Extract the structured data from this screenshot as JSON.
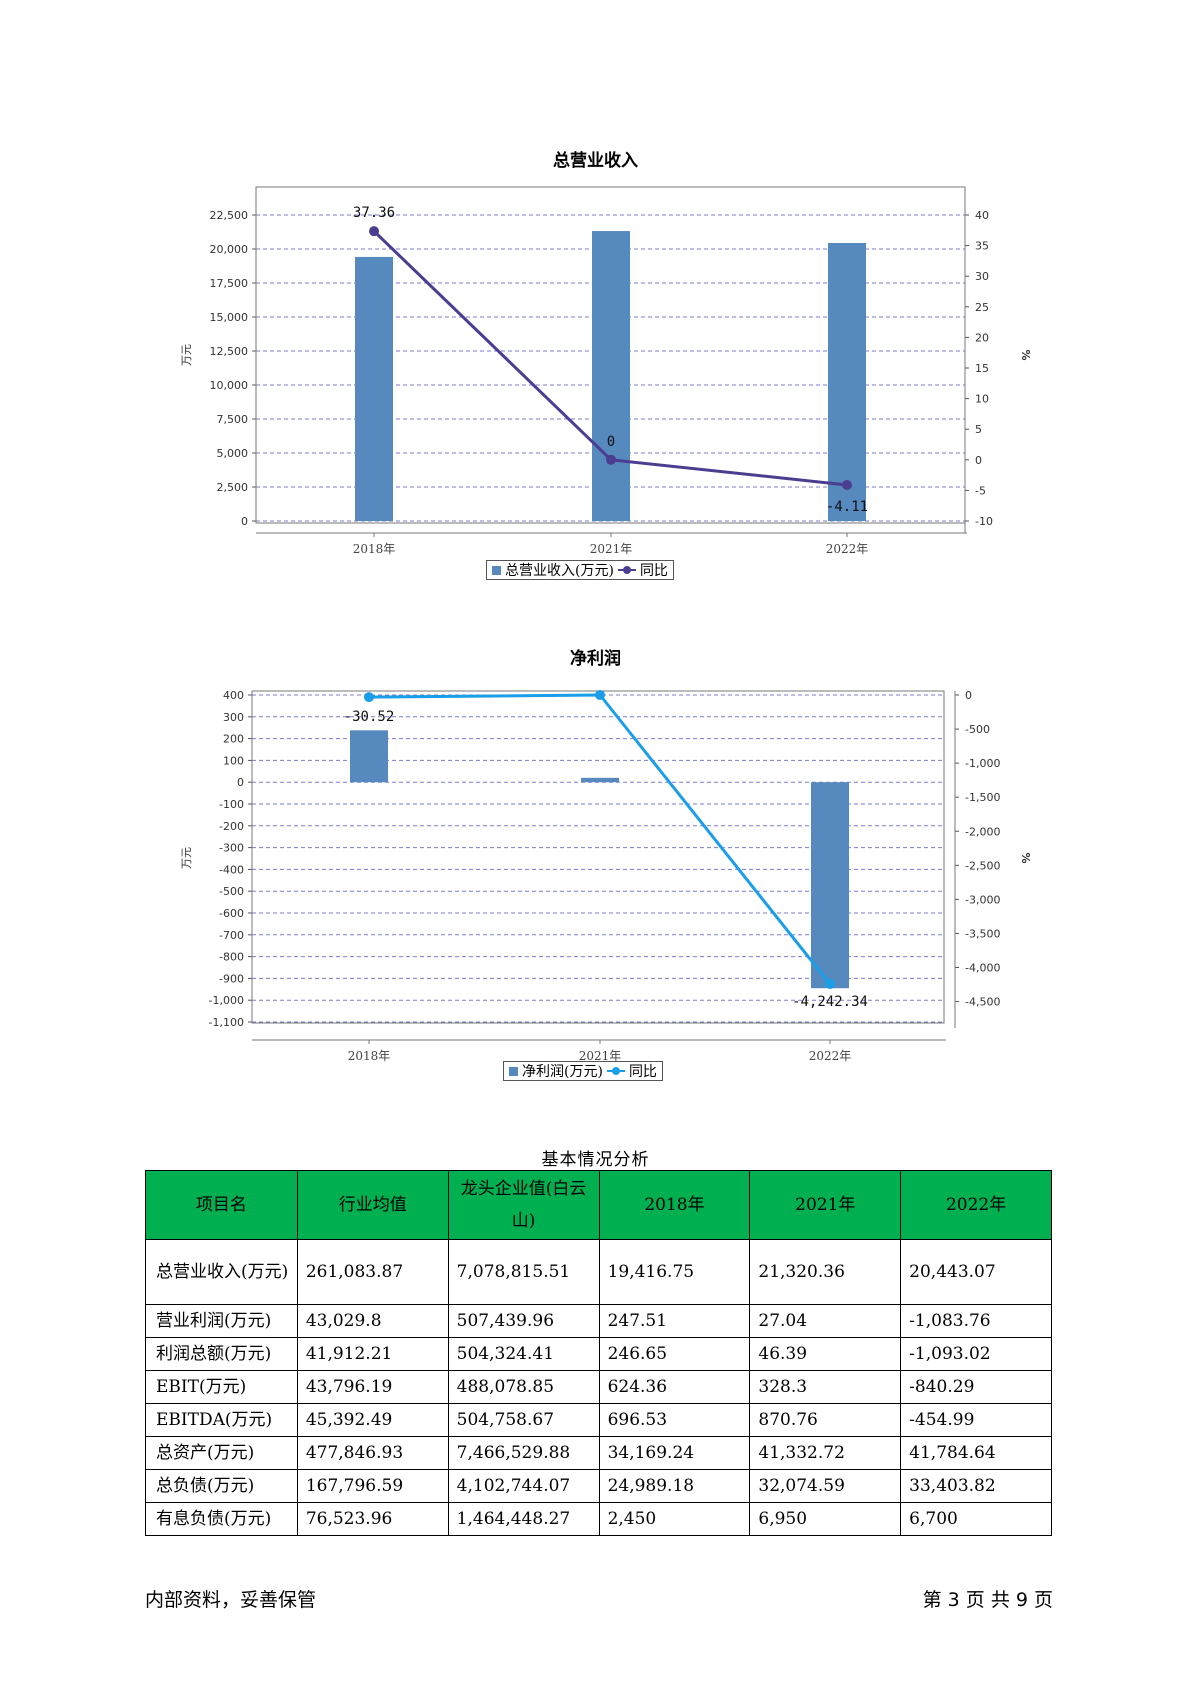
{
  "chart_data": [
    {
      "type": "bar",
      "title": "总营业收入",
      "categories": [
        "2018年",
        "2021年",
        "2022年"
      ],
      "ylabel": "万元",
      "y2label": "%",
      "ylim": [
        0,
        22500
      ],
      "y2lim": [
        -10,
        40
      ],
      "yticks": [
        "0",
        "2,500",
        "5,000",
        "7,500",
        "10,000",
        "12,500",
        "15,000",
        "17,500",
        "20,000",
        "22,500"
      ],
      "y2ticks": [
        "-10",
        "-5",
        "0",
        "5",
        "10",
        "15",
        "20",
        "25",
        "30",
        "35",
        "40"
      ],
      "grid": true,
      "legend_position": "bottom",
      "series": [
        {
          "name": "总营业收入(万元)",
          "type": "bar",
          "color": "#5689bd",
          "values": [
            19416.75,
            21320.36,
            20443.07
          ]
        },
        {
          "name": "同比",
          "type": "line",
          "axis": "right",
          "color": "#4b3d8f",
          "values": [
            37.36,
            0,
            -4.11
          ],
          "labels": [
            "37.36",
            "0",
            "-4.11"
          ]
        }
      ]
    },
    {
      "type": "bar",
      "title": "净利润",
      "categories": [
        "2018年",
        "2021年",
        "2022年"
      ],
      "ylabel": "万元",
      "y2label": "%",
      "ylim": [
        -1100,
        400
      ],
      "y2lim": [
        -4800,
        0
      ],
      "yticks": [
        "400",
        "300",
        "200",
        "100",
        "0",
        "-100",
        "-200",
        "-300",
        "-400",
        "-500",
        "-600",
        "-700",
        "-800",
        "-900",
        "-1,000",
        "-1,100"
      ],
      "y2ticks": [
        "0",
        "-500",
        "-1,000",
        "-1,500",
        "-2,000",
        "-2,500",
        "-3,000",
        "-3,500",
        "-4,000",
        "-4,500"
      ],
      "grid": true,
      "legend_position": "bottom",
      "series": [
        {
          "name": "净利润(万元)",
          "type": "bar",
          "color": "#5689bd",
          "values": [
            238,
            20,
            -945
          ]
        },
        {
          "name": "同比",
          "type": "line",
          "axis": "right",
          "color": "#1a9ee8",
          "values": [
            -30.52,
            0,
            -4242.34
          ],
          "labels": [
            "-30.52",
            "",
            "-4,242.34"
          ]
        }
      ]
    }
  ],
  "table": {
    "caption": "基本情况分析",
    "headers": [
      "项目名",
      "行业均值",
      "龙头企业值(白云山)",
      "2018年",
      "2021年",
      "2022年"
    ],
    "rows": [
      [
        "总营业收入(万元)",
        "261,083.87",
        "7,078,815.51",
        "19,416.75",
        "21,320.36",
        "20,443.07"
      ],
      [
        "营业利润(万元)",
        "43,029.8",
        "507,439.96",
        "247.51",
        "27.04",
        "-1,083.76"
      ],
      [
        "利润总额(万元)",
        "41,912.21",
        "504,324.41",
        "246.65",
        "46.39",
        "-1,093.02"
      ],
      [
        "EBIT(万元)",
        "43,796.19",
        "488,078.85",
        "624.36",
        "328.3",
        "-840.29"
      ],
      [
        "EBITDA(万元)",
        "45,392.49",
        "504,758.67",
        "696.53",
        "870.76",
        "-454.99"
      ],
      [
        "总资产(万元)",
        "477,846.93",
        "7,466,529.88",
        "34,169.24",
        "41,332.72",
        "41,784.64"
      ],
      [
        "总负债(万元)",
        "167,796.59",
        "4,102,744.07",
        "24,989.18",
        "32,074.59",
        "33,403.82"
      ],
      [
        "有息负债(万元)",
        "76,523.96",
        "1,464,448.27",
        "2,450",
        "6,950",
        "6,700"
      ]
    ],
    "header_color": "#00b050"
  },
  "footer": {
    "left": "内部资料，妥善保管",
    "right": "第 3 页  共 9 页"
  }
}
